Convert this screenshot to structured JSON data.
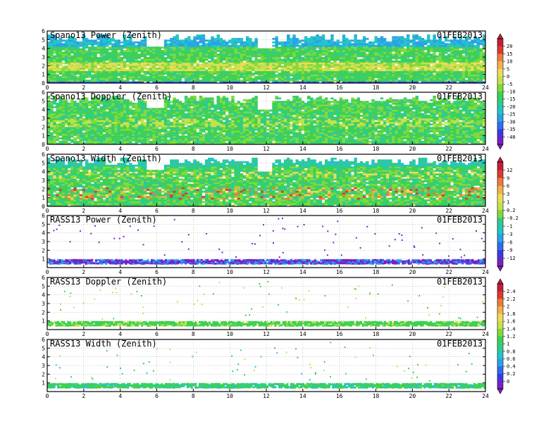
{
  "chart_data": {
    "type": "heatmap",
    "date": "01FEB2013",
    "x_ticks": [
      0,
      2,
      4,
      6,
      8,
      10,
      12,
      14,
      16,
      18,
      20,
      22,
      24
    ],
    "xlim": [
      0,
      24
    ],
    "panels": [
      {
        "title": "Spano13 Power (Zenith)",
        "date": "01FEB2013",
        "y_ticks": [
          0,
          1,
          2,
          3,
          4,
          5,
          6
        ],
        "ylim": [
          0,
          6
        ],
        "kind": "spano",
        "field": "power"
      },
      {
        "title": "Spano13 Doppler (Zenith)",
        "date": "01FEB2013",
        "y_ticks": [
          0,
          1,
          2,
          3,
          4,
          5,
          6
        ],
        "ylim": [
          0,
          6
        ],
        "kind": "spano",
        "field": "doppler"
      },
      {
        "title": "Spano13 Width (Zenith)",
        "date": "01FEB2013",
        "y_ticks": [
          0,
          1,
          2,
          3,
          4,
          5,
          6
        ],
        "ylim": [
          0,
          6
        ],
        "kind": "spano",
        "field": "width"
      },
      {
        "title": "RASS13 Power (Zenith)",
        "date": "01FEB2013",
        "y_ticks": [
          1,
          2,
          3,
          4,
          5,
          6
        ],
        "ylim": [
          0,
          6
        ],
        "kind": "rass",
        "field": "power"
      },
      {
        "title": "RASS13 Doppler (Zenith)",
        "date": "01FEB2013",
        "y_ticks": [
          1,
          2,
          3,
          4,
          5,
          6
        ],
        "ylim": [
          0,
          6
        ],
        "kind": "rass",
        "field": "doppler"
      },
      {
        "title": "RASS13 Width (Zenith)",
        "date": "01FEB2013",
        "y_ticks": [
          1,
          2,
          3,
          4,
          5,
          6
        ],
        "ylim": [
          0,
          6
        ],
        "kind": "rass",
        "field": "width"
      }
    ],
    "colorbars": [
      {
        "labels": [
          "20",
          "15",
          "10",
          "5",
          "0",
          "-5",
          "-10",
          "-15",
          "-20",
          "-25",
          "-30",
          "-35",
          "-40"
        ]
      },
      {
        "labels": [
          "12",
          "9",
          "6",
          "3",
          "1",
          "0.2",
          "-0.2",
          "-1",
          "-3",
          "-6",
          "-9",
          "-12"
        ]
      },
      {
        "labels": [
          "2.4",
          "2.2",
          "2",
          "1.8",
          "1.6",
          "1.4",
          "1.2",
          "1",
          "0.8",
          "0.6",
          "0.4",
          "0.2",
          "0"
        ]
      }
    ],
    "palette": [
      "#7a1fc4",
      "#3a3ae6",
      "#2f6ef0",
      "#29a3e8",
      "#23c6c6",
      "#2ecc8c",
      "#3ed14f",
      "#7fdb3a",
      "#c6e24a",
      "#eedc58",
      "#f3b04a",
      "#ef7a3c",
      "#e0382c",
      "#c41e3a"
    ],
    "grid": true
  }
}
